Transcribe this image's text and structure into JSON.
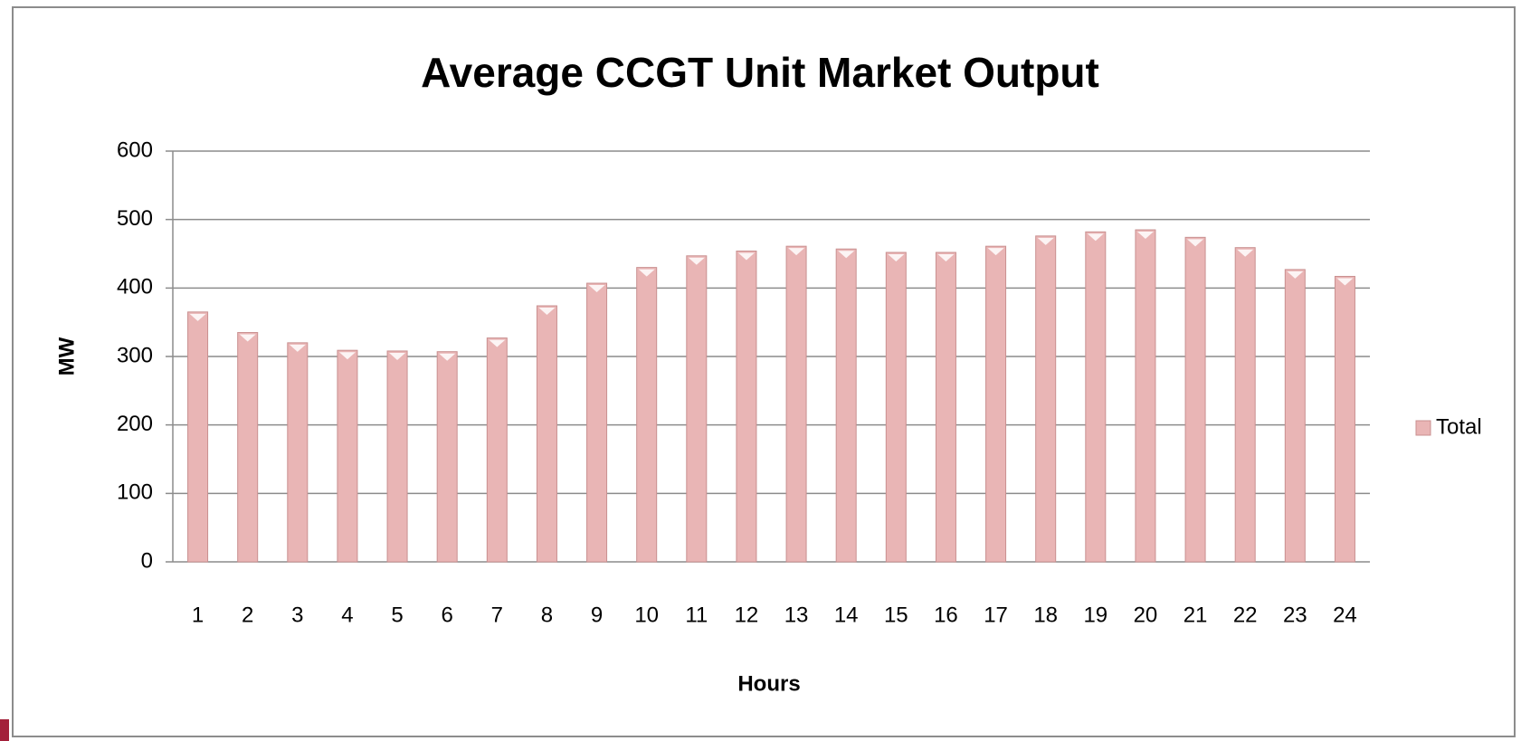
{
  "chart_data": {
    "type": "bar",
    "title": "Average CCGT Unit Market Output",
    "x_label": "Hours",
    "y_label": "MW",
    "categories": [
      "1",
      "2",
      "3",
      "4",
      "5",
      "6",
      "7",
      "8",
      "9",
      "10",
      "11",
      "12",
      "13",
      "14",
      "15",
      "16",
      "17",
      "18",
      "19",
      "20",
      "21",
      "22",
      "23",
      "24"
    ],
    "series": [
      {
        "name": "Total",
        "color": "#e9b5b5",
        "values": [
          365,
          335,
          320,
          309,
          308,
          307,
          327,
          374,
          407,
          430,
          447,
          454,
          461,
          457,
          452,
          452,
          461,
          476,
          482,
          485,
          474,
          459,
          427,
          417
        ]
      }
    ],
    "ylim": [
      0,
      600
    ],
    "yticks": [
      0,
      100,
      200,
      300,
      400,
      500,
      600
    ],
    "grid": true,
    "legend": "right"
  }
}
